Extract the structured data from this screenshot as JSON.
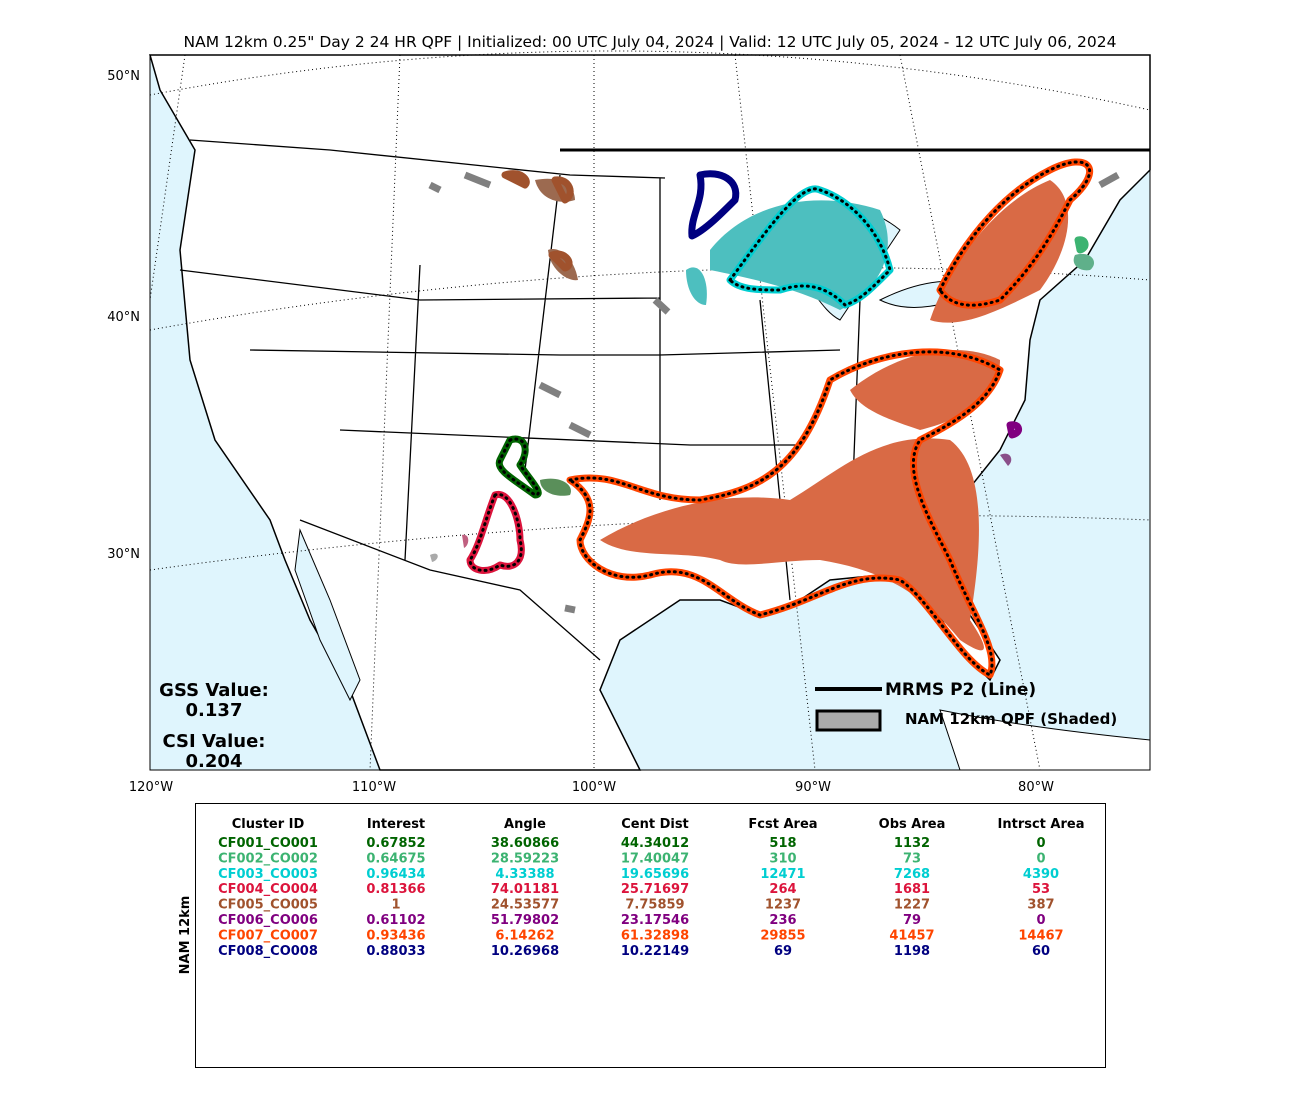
{
  "title": "NAM 12km 0.25\" Day 2 24 HR QPF | Initialized: 00 UTC July 04, 2024 | Valid: 12 UTC July 05, 2024 - 12 UTC July 06, 2024",
  "map": {
    "lat_labels": [
      "50°N",
      "40°N",
      "30°N"
    ],
    "lon_labels": [
      "120°W",
      "110°W",
      "100°W",
      "90°W",
      "80°W"
    ]
  },
  "scores": {
    "gss_label": "GSS Value:",
    "gss_value": 0.137,
    "csi_label": "CSI Value:",
    "csi_value": 0.204
  },
  "legend": {
    "line": "MRMS P2 (Line)",
    "shaded": "NAM 12km QPF (Shaded)"
  },
  "table": {
    "side_label": "NAM 12km",
    "header": [
      "Cluster ID",
      "Interest",
      "Angle",
      "Cent Dist",
      "Fcst Area",
      "Obs Area",
      "Intrsct Area"
    ],
    "row_colors": [
      "#006400",
      "#3cb371",
      "#00ced1",
      "#dc143c",
      "#a0522d",
      "#800080",
      "#ff4500",
      "#000080"
    ],
    "rows": [
      [
        "CF001_CO001",
        0.67852,
        38.60866,
        44.34012,
        518,
        1132,
        0
      ],
      [
        "CF002_CO002",
        0.64675,
        28.59223,
        17.40047,
        310,
        73,
        0
      ],
      [
        "CF003_CO003",
        0.96434,
        4.33388,
        19.65696,
        12471,
        7268,
        4390
      ],
      [
        "CF004_CO004",
        0.81366,
        74.01181,
        25.71697,
        264,
        1681,
        53
      ],
      [
        "CF005_CO005",
        1,
        24.53577,
        7.75859,
        1237,
        1227,
        387
      ],
      [
        "CF006_CO006",
        0.61102,
        51.79802,
        23.17546,
        236,
        79,
        0
      ],
      [
        "CF007_CO007",
        0.93436,
        6.14262,
        61.32898,
        29855,
        41457,
        14467
      ],
      [
        "CF008_CO008",
        0.88033,
        10.26968,
        10.22149,
        69,
        1198,
        60
      ]
    ]
  }
}
